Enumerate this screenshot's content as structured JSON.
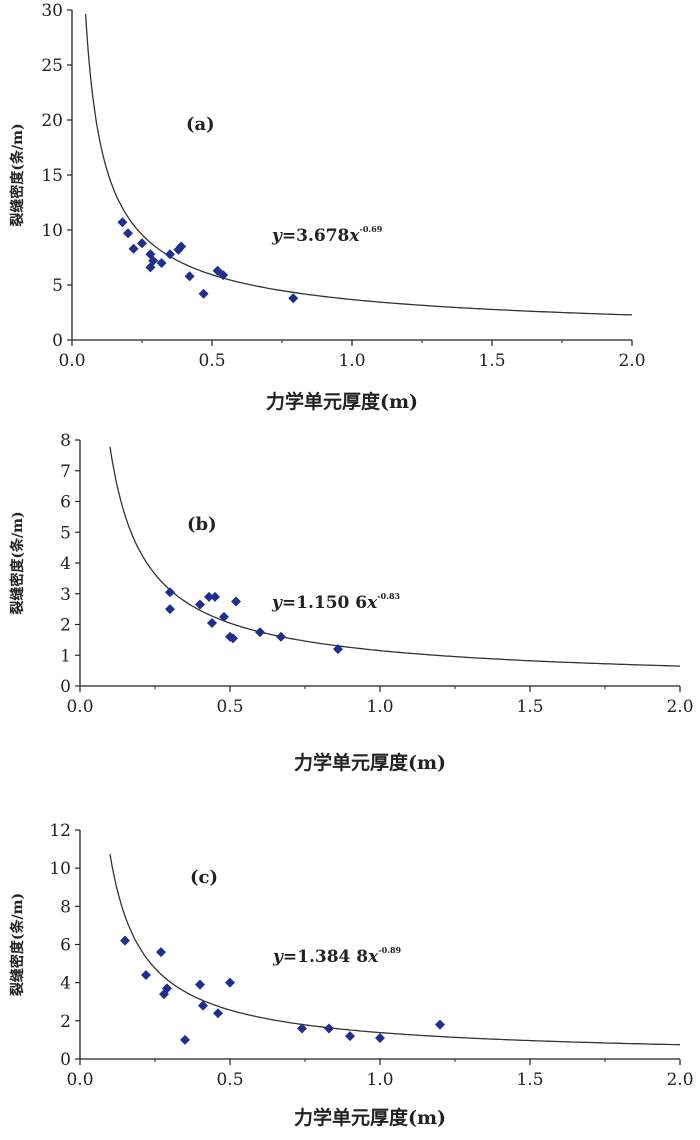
{
  "chart_data": [
    {
      "type": "scatter",
      "panel_label": "(a)",
      "xlabel": "力学单元厚度(m)",
      "ylabel": "裂缝密度(条/m)",
      "xlim": [
        0,
        2.0
      ],
      "ylim": [
        0,
        30
      ],
      "x_ticks": [
        "0.0",
        "0.5",
        "1.0",
        "1.5",
        "2.0"
      ],
      "y_ticks": [
        "0",
        "5",
        "10",
        "15",
        "20",
        "25",
        "30"
      ],
      "equation": {
        "prefix": "y",
        "rest": "=3.678",
        "var": "x",
        "exponent": "-0.69"
      },
      "fit": {
        "a": 3.678,
        "b": -0.69,
        "x_range": [
          0.02,
          2.0
        ]
      },
      "points": [
        {
          "x": 0.18,
          "y": 10.7
        },
        {
          "x": 0.2,
          "y": 9.7
        },
        {
          "x": 0.22,
          "y": 8.3
        },
        {
          "x": 0.25,
          "y": 8.8
        },
        {
          "x": 0.28,
          "y": 7.8
        },
        {
          "x": 0.28,
          "y": 6.6
        },
        {
          "x": 0.29,
          "y": 7.2
        },
        {
          "x": 0.32,
          "y": 7.0
        },
        {
          "x": 0.35,
          "y": 7.8
        },
        {
          "x": 0.38,
          "y": 8.2
        },
        {
          "x": 0.39,
          "y": 8.5
        },
        {
          "x": 0.42,
          "y": 5.8
        },
        {
          "x": 0.47,
          "y": 4.2
        },
        {
          "x": 0.52,
          "y": 6.3
        },
        {
          "x": 0.54,
          "y": 5.9
        },
        {
          "x": 0.79,
          "y": 3.8
        }
      ]
    },
    {
      "type": "scatter",
      "panel_label": "(b)",
      "xlabel": "力学单元厚度(m)",
      "ylabel": "裂缝密度(条/m)",
      "xlim": [
        0,
        2.0
      ],
      "ylim": [
        0,
        8
      ],
      "x_ticks": [
        "0.0",
        "0.5",
        "1.0",
        "1.5",
        "2.0"
      ],
      "y_ticks": [
        "0",
        "1",
        "2",
        "3",
        "4",
        "5",
        "6",
        "7",
        "8"
      ],
      "equation": {
        "prefix": "y",
        "rest": "=1.150 6",
        "var": "x",
        "exponent": "-0.83"
      },
      "fit": {
        "a": 1.1506,
        "b": -0.83,
        "x_range": [
          0.1,
          2.0
        ]
      },
      "points": [
        {
          "x": 0.3,
          "y": 3.05
        },
        {
          "x": 0.3,
          "y": 2.5
        },
        {
          "x": 0.4,
          "y": 2.65
        },
        {
          "x": 0.43,
          "y": 2.9
        },
        {
          "x": 0.45,
          "y": 2.9
        },
        {
          "x": 0.44,
          "y": 2.05
        },
        {
          "x": 0.48,
          "y": 2.25
        },
        {
          "x": 0.5,
          "y": 1.6
        },
        {
          "x": 0.51,
          "y": 1.55
        },
        {
          "x": 0.52,
          "y": 2.75
        },
        {
          "x": 0.6,
          "y": 1.75
        },
        {
          "x": 0.67,
          "y": 1.6
        },
        {
          "x": 0.86,
          "y": 1.2
        }
      ]
    },
    {
      "type": "scatter",
      "panel_label": "(c)",
      "xlabel": "力学单元厚度(m)",
      "ylabel": "裂缝密度(条/m)",
      "xlim": [
        0,
        2.0
      ],
      "ylim": [
        0,
        12
      ],
      "x_ticks": [
        "0.0",
        "0.5",
        "1.0",
        "1.5",
        "2.0"
      ],
      "y_ticks": [
        "0",
        "2",
        "4",
        "6",
        "8",
        "10",
        "12"
      ],
      "equation": {
        "prefix": "y",
        "rest": "=1.384 8",
        "var": "x",
        "exponent": "-0.89"
      },
      "fit": {
        "a": 1.3848,
        "b": -0.89,
        "x_range": [
          0.1,
          2.0
        ]
      },
      "points": [
        {
          "x": 0.15,
          "y": 6.2
        },
        {
          "x": 0.22,
          "y": 4.4
        },
        {
          "x": 0.27,
          "y": 5.6
        },
        {
          "x": 0.28,
          "y": 3.4
        },
        {
          "x": 0.29,
          "y": 3.7
        },
        {
          "x": 0.35,
          "y": 1.0
        },
        {
          "x": 0.4,
          "y": 3.9
        },
        {
          "x": 0.41,
          "y": 2.8
        },
        {
          "x": 0.46,
          "y": 2.4
        },
        {
          "x": 0.5,
          "y": 4.0
        },
        {
          "x": 0.74,
          "y": 1.6
        },
        {
          "x": 0.83,
          "y": 1.6
        },
        {
          "x": 0.9,
          "y": 1.2
        },
        {
          "x": 1.0,
          "y": 1.1
        },
        {
          "x": 1.2,
          "y": 1.8
        }
      ]
    }
  ],
  "colors": {
    "point": "#1f2f8f",
    "curve": "#333333",
    "axis": "#222222"
  }
}
